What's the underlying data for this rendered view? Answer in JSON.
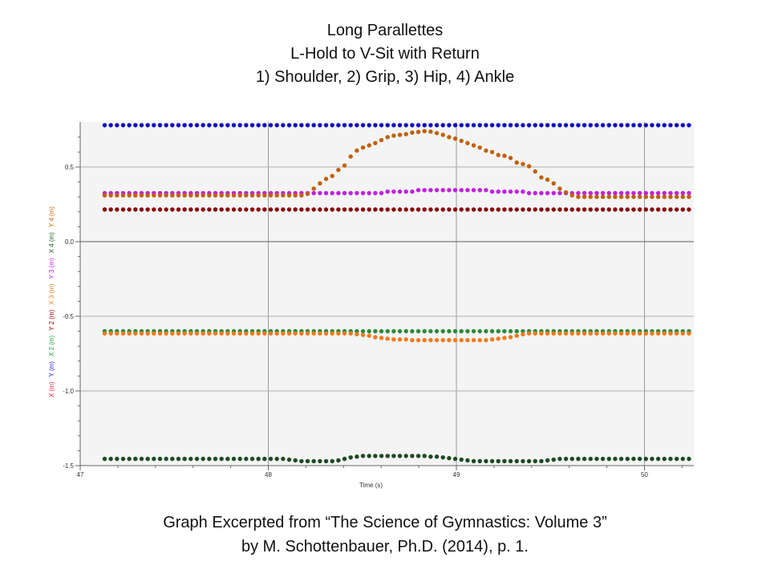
{
  "title_lines": [
    "Long Parallettes",
    "L-Hold to V-Sit with Return",
    "1) Shoulder, 2) Grip, 3) Hip, 4) Ankle"
  ],
  "caption_lines": [
    "Graph Excerpted from “The Science of Gymnastics: Volume 3”",
    "by M. Schottenbauer, Ph.D. (2014), p. 1."
  ],
  "chart_data": {
    "type": "scatter",
    "title": "Long Parallettes / L-Hold to V-Sit with Return / 1) Shoulder, 2) Grip, 3) Hip, 4) Ankle",
    "xlabel": "Time (s)",
    "ylabel_parts": [
      {
        "text": "X (m)",
        "color": "#e0204a"
      },
      {
        "text": "Y (m)",
        "color": "#2020d0"
      },
      {
        "text": "X 2 (m)",
        "color": "#20a040"
      },
      {
        "text": "Y 2 (m)",
        "color": "#8b0000"
      },
      {
        "text": "X 3 (m)",
        "color": "#f08020"
      },
      {
        "text": "Y 3 (m)",
        "color": "#c020e0"
      },
      {
        "text": "X 4 (m)",
        "color": "#1e5a1e"
      },
      {
        "text": "Y 4 (m)",
        "color": "#c8640a"
      }
    ],
    "xlim": [
      47,
      50.27
    ],
    "ylim": [
      -1.5,
      0.8
    ],
    "x_ticks": [
      "47",
      "48",
      "49",
      "50"
    ],
    "y_ticks": [
      "0.5",
      "0.0",
      "-0.5",
      "-1.0",
      "-1.5"
    ],
    "grid": true,
    "x": {
      "start": 47.13,
      "step": 0.0327,
      "count": 96
    },
    "series": [
      {
        "name": "Y (m)",
        "color": "#1010c0",
        "value": 0.78
      },
      {
        "name": "Y 2 (m)",
        "color": "#8b0a0a",
        "value": 0.215
      },
      {
        "name": "X 2 (m)",
        "color": "#2a8a3a",
        "value": -0.6
      },
      {
        "name": "X 3 (m)",
        "color": "#f07a1a",
        "values": [
          -0.615,
          -0.615,
          -0.615,
          -0.615,
          -0.615,
          -0.615,
          -0.615,
          -0.615,
          -0.615,
          -0.615,
          -0.615,
          -0.615,
          -0.615,
          -0.615,
          -0.615,
          -0.615,
          -0.615,
          -0.615,
          -0.615,
          -0.615,
          -0.615,
          -0.615,
          -0.615,
          -0.615,
          -0.615,
          -0.615,
          -0.615,
          -0.615,
          -0.615,
          -0.615,
          -0.615,
          -0.615,
          -0.615,
          -0.615,
          -0.615,
          -0.615,
          -0.615,
          -0.615,
          -0.615,
          -0.615,
          -0.615,
          -0.62,
          -0.625,
          -0.63,
          -0.64,
          -0.645,
          -0.65,
          -0.655,
          -0.655,
          -0.655,
          -0.66,
          -0.66,
          -0.66,
          -0.66,
          -0.66,
          -0.66,
          -0.66,
          -0.66,
          -0.66,
          -0.66,
          -0.66,
          -0.66,
          -0.66,
          -0.655,
          -0.65,
          -0.645,
          -0.64,
          -0.63,
          -0.62,
          -0.615,
          -0.615,
          -0.615,
          -0.615,
          -0.615,
          -0.615,
          -0.615,
          -0.615,
          -0.615,
          -0.615,
          -0.615,
          -0.615,
          -0.615,
          -0.615,
          -0.615,
          -0.615,
          -0.615,
          -0.615,
          -0.615,
          -0.615,
          -0.615,
          -0.615,
          -0.615,
          -0.615,
          -0.615,
          -0.615,
          -0.615
        ]
      },
      {
        "name": "Y 3 (m)",
        "color": "#c020e0",
        "values": [
          0.325,
          0.325,
          0.325,
          0.325,
          0.325,
          0.325,
          0.325,
          0.325,
          0.325,
          0.325,
          0.325,
          0.325,
          0.325,
          0.325,
          0.325,
          0.325,
          0.325,
          0.325,
          0.325,
          0.325,
          0.325,
          0.325,
          0.325,
          0.325,
          0.325,
          0.325,
          0.325,
          0.325,
          0.325,
          0.325,
          0.325,
          0.325,
          0.325,
          0.325,
          0.325,
          0.325,
          0.325,
          0.325,
          0.325,
          0.325,
          0.325,
          0.325,
          0.325,
          0.325,
          0.325,
          0.325,
          0.335,
          0.335,
          0.335,
          0.335,
          0.335,
          0.345,
          0.345,
          0.345,
          0.345,
          0.345,
          0.345,
          0.345,
          0.345,
          0.345,
          0.345,
          0.345,
          0.345,
          0.335,
          0.335,
          0.335,
          0.335,
          0.335,
          0.335,
          0.325,
          0.325,
          0.325,
          0.325,
          0.325,
          0.325,
          0.325,
          0.325,
          0.325,
          0.325,
          0.325,
          0.325,
          0.325,
          0.325,
          0.325,
          0.325,
          0.325,
          0.325,
          0.325,
          0.325,
          0.325,
          0.325,
          0.325,
          0.325,
          0.325,
          0.325,
          0.325
        ]
      },
      {
        "name": "Y 4 (m)",
        "color": "#c0600a",
        "values": [
          0.31,
          0.31,
          0.31,
          0.31,
          0.31,
          0.31,
          0.31,
          0.31,
          0.31,
          0.31,
          0.31,
          0.31,
          0.31,
          0.31,
          0.31,
          0.31,
          0.31,
          0.31,
          0.31,
          0.31,
          0.31,
          0.31,
          0.31,
          0.31,
          0.31,
          0.31,
          0.31,
          0.31,
          0.31,
          0.31,
          0.31,
          0.31,
          0.31,
          0.32,
          0.355,
          0.39,
          0.42,
          0.44,
          0.48,
          0.51,
          0.57,
          0.61,
          0.63,
          0.645,
          0.66,
          0.68,
          0.7,
          0.71,
          0.715,
          0.72,
          0.73,
          0.735,
          0.74,
          0.737,
          0.727,
          0.715,
          0.7,
          0.69,
          0.675,
          0.66,
          0.645,
          0.63,
          0.61,
          0.6,
          0.58,
          0.575,
          0.56,
          0.53,
          0.52,
          0.505,
          0.47,
          0.43,
          0.415,
          0.39,
          0.355,
          0.33,
          0.31,
          0.3,
          0.3,
          0.3,
          0.3,
          0.3,
          0.3,
          0.3,
          0.3,
          0.3,
          0.3,
          0.3,
          0.3,
          0.3,
          0.3,
          0.3,
          0.3,
          0.3,
          0.3,
          0.3
        ]
      },
      {
        "name": "X 4 (m)",
        "color": "#1e4a22",
        "values": [
          -1.455,
          -1.455,
          -1.455,
          -1.455,
          -1.455,
          -1.455,
          -1.455,
          -1.455,
          -1.455,
          -1.455,
          -1.455,
          -1.455,
          -1.455,
          -1.455,
          -1.455,
          -1.455,
          -1.455,
          -1.455,
          -1.455,
          -1.455,
          -1.455,
          -1.455,
          -1.455,
          -1.455,
          -1.455,
          -1.455,
          -1.455,
          -1.455,
          -1.455,
          -1.455,
          -1.46,
          -1.465,
          -1.47,
          -1.47,
          -1.47,
          -1.47,
          -1.47,
          -1.47,
          -1.465,
          -1.455,
          -1.445,
          -1.44,
          -1.435,
          -1.435,
          -1.435,
          -1.435,
          -1.435,
          -1.435,
          -1.435,
          -1.435,
          -1.435,
          -1.435,
          -1.435,
          -1.44,
          -1.44,
          -1.445,
          -1.45,
          -1.455,
          -1.46,
          -1.465,
          -1.47,
          -1.47,
          -1.47,
          -1.47,
          -1.47,
          -1.47,
          -1.47,
          -1.47,
          -1.47,
          -1.47,
          -1.47,
          -1.47,
          -1.465,
          -1.46,
          -1.455,
          -1.455,
          -1.455,
          -1.455,
          -1.455,
          -1.455,
          -1.455,
          -1.455,
          -1.455,
          -1.455,
          -1.455,
          -1.455,
          -1.455,
          -1.455,
          -1.455,
          -1.455,
          -1.455,
          -1.455,
          -1.455,
          -1.455,
          -1.455,
          -1.455
        ]
      }
    ]
  }
}
